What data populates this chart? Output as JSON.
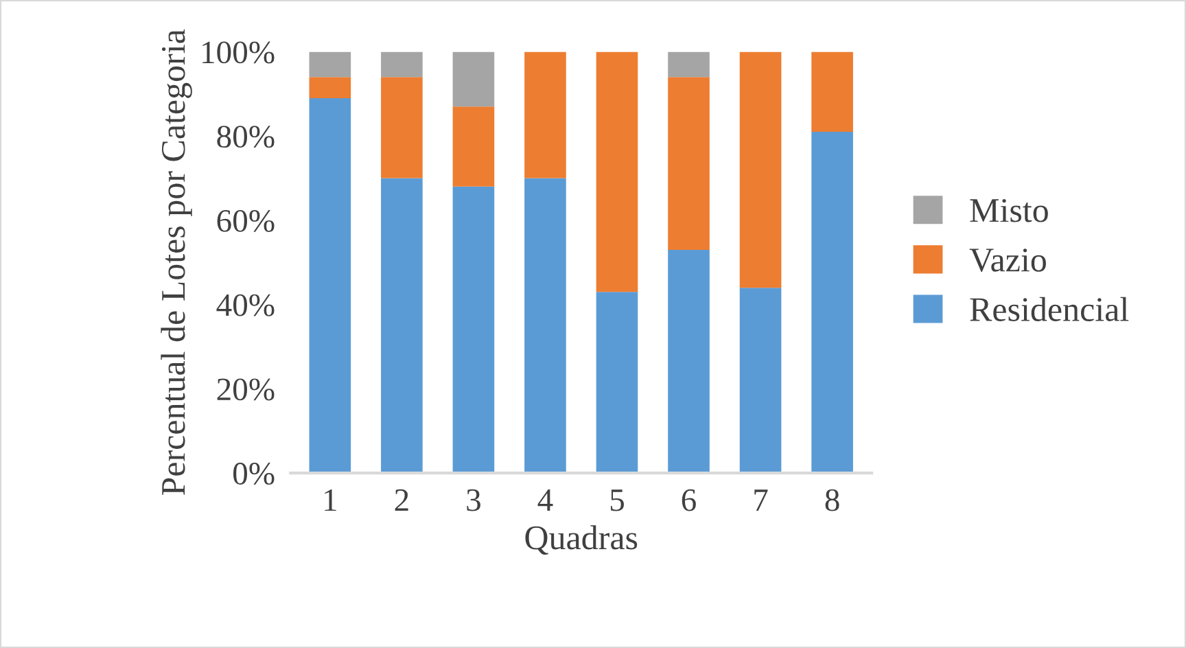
{
  "chart_data": {
    "type": "bar",
    "stacked": true,
    "xlabel": "Quadras",
    "ylabel": "Percentual de Lotes por Categoria",
    "categories": [
      "1",
      "2",
      "3",
      "4",
      "5",
      "6",
      "7",
      "8"
    ],
    "series": [
      {
        "name": "Residencial",
        "color": "#5b9bd5",
        "values": [
          89,
          70,
          68,
          70,
          43,
          53,
          44,
          81
        ]
      },
      {
        "name": "Vazio",
        "color": "#ed7d31",
        "values": [
          5,
          24,
          19,
          30,
          57,
          41,
          56,
          19
        ]
      },
      {
        "name": "Misto",
        "color": "#a5a5a5",
        "values": [
          6,
          6,
          13,
          0,
          0,
          6,
          0,
          0
        ]
      }
    ],
    "ylim": [
      0,
      100
    ],
    "yticks": [
      {
        "value": 0,
        "label": "0%"
      },
      {
        "value": 20,
        "label": "20%"
      },
      {
        "value": 40,
        "label": "40%"
      },
      {
        "value": 60,
        "label": "60%"
      },
      {
        "value": 80,
        "label": "80%"
      },
      {
        "value": 100,
        "label": "100%"
      }
    ],
    "grid": false,
    "legend": "right"
  }
}
